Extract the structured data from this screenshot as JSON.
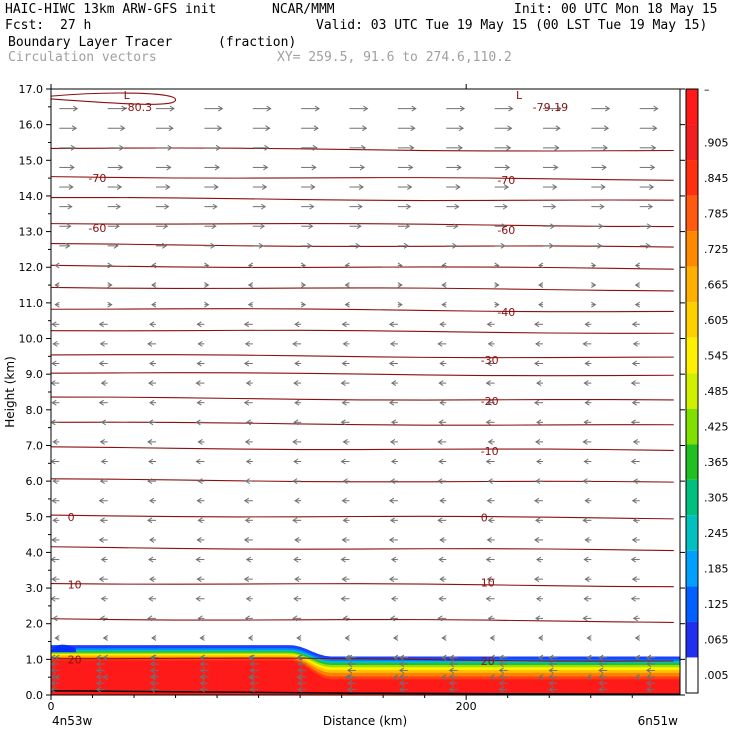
{
  "header": {
    "model": "HAIC-HIWC 13km ARW-GFS init",
    "center": "NCAR/MMM",
    "init": "Init: 00 UTC Mon 18 May 15",
    "fcst_label": "Fcst:",
    "fcst_value": "27 h",
    "valid": "Valid: 03 UTC Tue 19 May 15 (00 LST Tue 19 May 15)",
    "field_name": "Boundary Layer Tracer",
    "field_units": "(fraction)",
    "vector_name": "Circulation vectors",
    "xy_range": "XY= 259.5, 91.6 to 274.6,110.2"
  },
  "colors": {
    "contour": "#8b1010",
    "vector": "#707070",
    "frame": "#000000"
  },
  "chart_data": {
    "type": "heatmap",
    "xlabel": "Distance (km)",
    "ylabel": "Height (km)",
    "xlim": [
      0,
      303
    ],
    "ylim": [
      0,
      17
    ],
    "x_ticks": [
      "0",
      "200"
    ],
    "x_tick_values": [
      0,
      200
    ],
    "y_ticks": [
      "0.0",
      "1.0",
      "2.0",
      "3.0",
      "4.0",
      "5.0",
      "6.0",
      "7.0",
      "8.0",
      "9.0",
      "10.0",
      "11.0",
      "12.0",
      "13.0",
      "14.0",
      "15.0",
      "16.0",
      "17.0"
    ],
    "x_endpoints": {
      "left": "4n53w",
      "right": "6n51w"
    },
    "colorbar": {
      "labels": [
        "–",
        ".905",
        ".845",
        ".785",
        ".725",
        ".665",
        ".605",
        ".545",
        ".485",
        ".425",
        ".365",
        ".305",
        ".245",
        ".185",
        ".125",
        ".065",
        ".005"
      ],
      "colors": [
        "#ff1a1a",
        "#f02020",
        "#ff3010",
        "#ff5a10",
        "#ff8a00",
        "#ffb000",
        "#ffd000",
        "#fff000",
        "#d0f000",
        "#80e000",
        "#20c020",
        "#00c080",
        "#00c0c0",
        "#00a0ff",
        "#0060ff",
        "#2030f0",
        "#ffffff"
      ]
    },
    "tracer_layer": {
      "top_height_km_left": 1.4,
      "top_height_km_right": 1.05,
      "transition_distance_km": [
        115,
        135
      ]
    },
    "temperature_contours": [
      {
        "label": "-80.3",
        "height_km": 16.6
      },
      {
        "label": "-79.19",
        "height_km": 16.6
      },
      {
        "label": "-70",
        "height_km": 14.5
      },
      {
        "label": "-60",
        "height_km": 13.2
      },
      {
        "label": "-40",
        "height_km": 10.8
      },
      {
        "label": "-30",
        "height_km": 9.5
      },
      {
        "label": "-20",
        "height_km": 8.3
      },
      {
        "label": "-10",
        "height_km": 6.9
      },
      {
        "label": "0",
        "height_km": 5.0
      },
      {
        "label": "10",
        "height_km": 3.1
      },
      {
        "label": "20",
        "height_km": 1.0
      }
    ],
    "extra_isotherm_heights_km": [
      15.3,
      13.9,
      12.6,
      12.0,
      11.4,
      10.2,
      9.0,
      7.6,
      6.0,
      4.1,
      2.1
    ],
    "low_markers": [
      {
        "label": "L",
        "distance_km": 35,
        "height_km": 16.8
      },
      {
        "label": "L",
        "distance_km": 224,
        "height_km": 16.8
      }
    ]
  }
}
